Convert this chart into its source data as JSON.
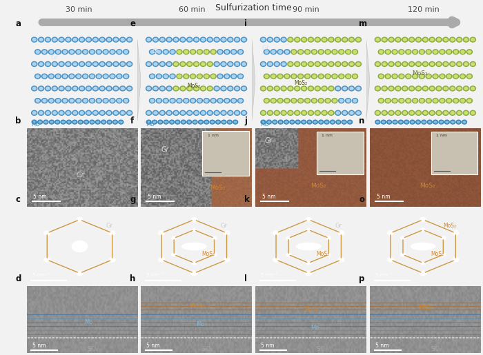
{
  "title": "Sulfurization time",
  "col_labels": [
    "30 min",
    "60 min",
    "90 min",
    "120 min"
  ],
  "panel_letters_col0": [
    "a",
    "b",
    "c",
    "d"
  ],
  "panel_letters_col1": [
    "e",
    "f",
    "g",
    "h"
  ],
  "panel_letters_col2": [
    "i",
    "j",
    "k",
    "l"
  ],
  "panel_letters_col3": [
    "m",
    "n",
    "o",
    "p"
  ],
  "bg_color": "#f2f2f2",
  "figure_width": 7.0,
  "figure_height": 5.15,
  "dpi": 100,
  "graphene_outer": "#4a8fc0",
  "graphene_inner": "#aad4f0",
  "mos2_outer": "#8aaa40",
  "mos2_inner": "#cce070",
  "mo_bottom_outer": "#3a80b8",
  "mo_bottom_inner": "#7ac0e0",
  "schematic_bg0": "#c8dff0",
  "schematic_bg1": "#c8dff0",
  "schematic_bg2": "#c8dff0",
  "schematic_bg3": "#d8ecd0",
  "diff_bg": "#050508",
  "hex_color": "#cc9944",
  "gr_label": "#cccccc",
  "mos2_label": "#cc8833",
  "mo_label": "#88b8d8",
  "sio2_label": "#aaaaaa",
  "scale_white": "#ffffff",
  "wedge_color": "#d8d8d8"
}
